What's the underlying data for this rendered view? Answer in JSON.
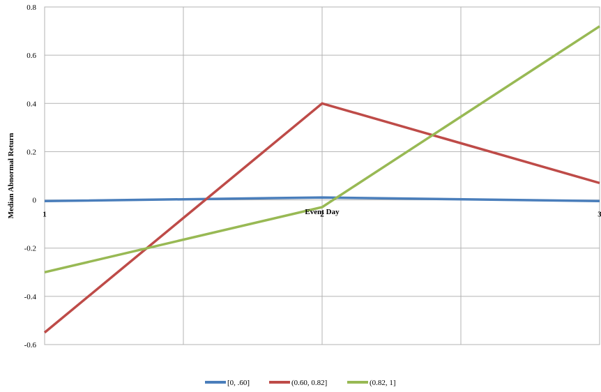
{
  "chart_data": {
    "type": "line",
    "title": "",
    "xlabel": "Event Day",
    "ylabel": "Median Abnormal Return",
    "x": [
      1,
      2,
      3
    ],
    "x_tick_labels": [
      "1",
      "2",
      "3"
    ],
    "xlim": [
      1,
      3
    ],
    "ylim": [
      -0.6,
      0.8
    ],
    "y_ticks": [
      -0.6,
      -0.4,
      -0.2,
      0,
      0.2,
      0.4,
      0.6,
      0.8
    ],
    "y_tick_labels": [
      "-0.6",
      "-0.4",
      "-0.2",
      "0",
      "0.2",
      "0.4",
      "0.6",
      "0.8"
    ],
    "grid": true,
    "legend_position": "bottom",
    "series": [
      {
        "name": "[0, .60]",
        "color": "#4a7ebb",
        "values": [
          -0.005,
          0.01,
          -0.005
        ]
      },
      {
        "name": "(0.60, 0.82]",
        "color": "#be4b48",
        "values": [
          -0.55,
          0.4,
          0.07
        ]
      },
      {
        "name": "(0.82, 1]",
        "color": "#98b954",
        "values": [
          -0.3,
          -0.03,
          0.72
        ]
      }
    ]
  }
}
